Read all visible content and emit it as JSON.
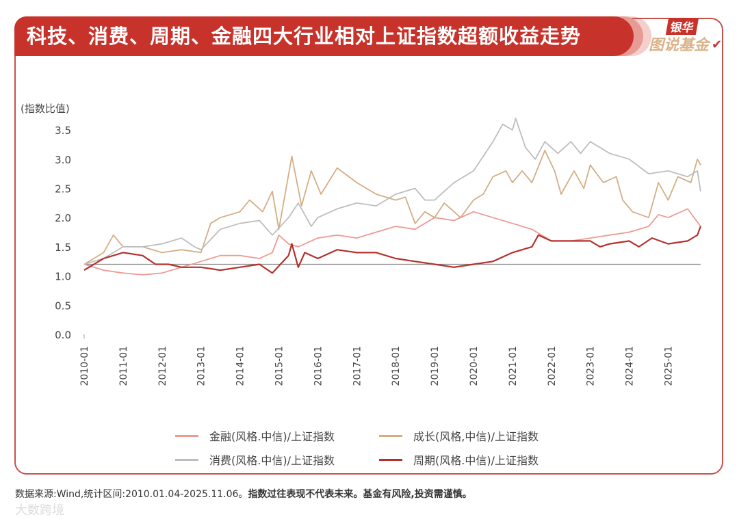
{
  "header": {
    "title": "科技、消费、周期、金融四大行业相对上证指数超额收益走势"
  },
  "logo": {
    "top": "银华",
    "main": "图说基金"
  },
  "footer": {
    "source": "数据来源:Wind,统计区间:2010.01.04-2025.11.06。",
    "disclaimer": "指数过往表现不代表未来。基金有风险,投资需谨慎。"
  },
  "watermark": "大数跨境",
  "chart_data": {
    "type": "line",
    "ylabel": "(指数比值)",
    "ylim": [
      0,
      3.5
    ],
    "yticks": [
      "0.0",
      "0.5",
      "1.0",
      "1.5",
      "2.0",
      "2.5",
      "3.0",
      "3.5"
    ],
    "xticks": [
      "2010-01",
      "2011-01",
      "2012-01",
      "2013-01",
      "2014-01",
      "2015-01",
      "2016-01",
      "2017-01",
      "2018-01",
      "2019-01",
      "2020-01",
      "2021-01",
      "2022-01",
      "2023-01",
      "2024-01",
      "2025-01"
    ],
    "xlim": [
      "2010-01",
      "2025-11"
    ],
    "reference_line": {
      "y": 1.2,
      "color": "#888888"
    },
    "grid": false,
    "legend_placement": "bottom",
    "series": [
      {
        "name": "金融(风格.中信)/上证指数",
        "color": "#ee9a93",
        "points": [
          [
            "2010-01",
            1.2
          ],
          [
            "2010-07",
            1.1
          ],
          [
            "2011-01",
            1.05
          ],
          [
            "2011-07",
            1.02
          ],
          [
            "2012-01",
            1.05
          ],
          [
            "2012-07",
            1.15
          ],
          [
            "2013-01",
            1.25
          ],
          [
            "2013-07",
            1.35
          ],
          [
            "2014-01",
            1.35
          ],
          [
            "2014-07",
            1.3
          ],
          [
            "2014-11",
            1.4
          ],
          [
            "2015-01",
            1.7
          ],
          [
            "2015-04",
            1.55
          ],
          [
            "2015-07",
            1.5
          ],
          [
            "2016-01",
            1.65
          ],
          [
            "2016-07",
            1.7
          ],
          [
            "2017-01",
            1.65
          ],
          [
            "2017-07",
            1.75
          ],
          [
            "2018-01",
            1.85
          ],
          [
            "2018-07",
            1.8
          ],
          [
            "2019-01",
            2.0
          ],
          [
            "2019-07",
            1.95
          ],
          [
            "2020-01",
            2.1
          ],
          [
            "2020-07",
            2.0
          ],
          [
            "2021-01",
            1.9
          ],
          [
            "2021-07",
            1.8
          ],
          [
            "2022-01",
            1.6
          ],
          [
            "2022-07",
            1.6
          ],
          [
            "2023-01",
            1.65
          ],
          [
            "2023-07",
            1.7
          ],
          [
            "2024-01",
            1.75
          ],
          [
            "2024-07",
            1.85
          ],
          [
            "2024-10",
            2.05
          ],
          [
            "2025-01",
            2.0
          ],
          [
            "2025-07",
            2.15
          ],
          [
            "2025-11",
            1.85
          ]
        ]
      },
      {
        "name": "成长(风格,中信)/上证指数",
        "color": "#d4ad84",
        "points": [
          [
            "2010-01",
            1.2
          ],
          [
            "2010-07",
            1.4
          ],
          [
            "2010-10",
            1.7
          ],
          [
            "2011-01",
            1.5
          ],
          [
            "2011-07",
            1.5
          ],
          [
            "2012-01",
            1.4
          ],
          [
            "2012-07",
            1.45
          ],
          [
            "2013-01",
            1.4
          ],
          [
            "2013-04",
            1.9
          ],
          [
            "2013-07",
            2.0
          ],
          [
            "2014-01",
            2.1
          ],
          [
            "2014-04",
            2.3
          ],
          [
            "2014-08",
            2.1
          ],
          [
            "2014-11",
            2.45
          ],
          [
            "2015-01",
            1.8
          ],
          [
            "2015-05",
            3.05
          ],
          [
            "2015-08",
            2.2
          ],
          [
            "2015-11",
            2.8
          ],
          [
            "2016-02",
            2.4
          ],
          [
            "2016-07",
            2.85
          ],
          [
            "2017-01",
            2.6
          ],
          [
            "2017-07",
            2.4
          ],
          [
            "2018-01",
            2.3
          ],
          [
            "2018-04",
            2.35
          ],
          [
            "2018-07",
            1.9
          ],
          [
            "2018-10",
            2.1
          ],
          [
            "2019-01",
            2.0
          ],
          [
            "2019-04",
            2.25
          ],
          [
            "2019-09",
            2.0
          ],
          [
            "2020-01",
            2.3
          ],
          [
            "2020-04",
            2.4
          ],
          [
            "2020-07",
            2.7
          ],
          [
            "2020-11",
            2.8
          ],
          [
            "2021-01",
            2.6
          ],
          [
            "2021-04",
            2.8
          ],
          [
            "2021-07",
            2.6
          ],
          [
            "2021-11",
            3.15
          ],
          [
            "2022-02",
            2.8
          ],
          [
            "2022-04",
            2.4
          ],
          [
            "2022-08",
            2.8
          ],
          [
            "2022-11",
            2.5
          ],
          [
            "2023-01",
            2.9
          ],
          [
            "2023-05",
            2.6
          ],
          [
            "2023-09",
            2.7
          ],
          [
            "2023-11",
            2.3
          ],
          [
            "2024-02",
            2.1
          ],
          [
            "2024-07",
            2.0
          ],
          [
            "2024-10",
            2.6
          ],
          [
            "2025-01",
            2.3
          ],
          [
            "2025-04",
            2.7
          ],
          [
            "2025-08",
            2.6
          ],
          [
            "2025-10",
            3.0
          ],
          [
            "2025-11",
            2.9
          ]
        ]
      },
      {
        "name": "消费(风格.中信)/上证指数",
        "color": "#bdbdbd",
        "points": [
          [
            "2010-01",
            1.2
          ],
          [
            "2010-07",
            1.3
          ],
          [
            "2011-01",
            1.5
          ],
          [
            "2011-07",
            1.5
          ],
          [
            "2012-01",
            1.55
          ],
          [
            "2012-07",
            1.65
          ],
          [
            "2012-11",
            1.5
          ],
          [
            "2013-01",
            1.45
          ],
          [
            "2013-07",
            1.8
          ],
          [
            "2014-01",
            1.9
          ],
          [
            "2014-07",
            1.95
          ],
          [
            "2014-11",
            1.7
          ],
          [
            "2015-04",
            2.0
          ],
          [
            "2015-07",
            2.25
          ],
          [
            "2015-11",
            1.85
          ],
          [
            "2016-01",
            2.0
          ],
          [
            "2016-07",
            2.15
          ],
          [
            "2017-01",
            2.25
          ],
          [
            "2017-07",
            2.2
          ],
          [
            "2018-01",
            2.4
          ],
          [
            "2018-07",
            2.5
          ],
          [
            "2018-10",
            2.3
          ],
          [
            "2019-01",
            2.3
          ],
          [
            "2019-07",
            2.6
          ],
          [
            "2020-01",
            2.8
          ],
          [
            "2020-07",
            3.3
          ],
          [
            "2020-10",
            3.6
          ],
          [
            "2021-01",
            3.5
          ],
          [
            "2021-02",
            3.7
          ],
          [
            "2021-05",
            3.2
          ],
          [
            "2021-08",
            3.0
          ],
          [
            "2021-11",
            3.3
          ],
          [
            "2022-03",
            3.1
          ],
          [
            "2022-07",
            3.3
          ],
          [
            "2022-10",
            3.1
          ],
          [
            "2023-01",
            3.3
          ],
          [
            "2023-07",
            3.1
          ],
          [
            "2024-01",
            3.0
          ],
          [
            "2024-07",
            2.75
          ],
          [
            "2025-01",
            2.8
          ],
          [
            "2025-07",
            2.7
          ],
          [
            "2025-10",
            2.8
          ],
          [
            "2025-11",
            2.45
          ]
        ]
      },
      {
        "name": "周期(风格.中信)/上证指数",
        "color": "#b5302a",
        "points": [
          [
            "2010-01",
            1.1
          ],
          [
            "2010-07",
            1.3
          ],
          [
            "2011-01",
            1.4
          ],
          [
            "2011-07",
            1.35
          ],
          [
            "2011-11",
            1.2
          ],
          [
            "2012-03",
            1.2
          ],
          [
            "2012-07",
            1.15
          ],
          [
            "2013-01",
            1.15
          ],
          [
            "2013-07",
            1.1
          ],
          [
            "2014-01",
            1.15
          ],
          [
            "2014-07",
            1.2
          ],
          [
            "2014-11",
            1.05
          ],
          [
            "2015-04",
            1.35
          ],
          [
            "2015-05",
            1.55
          ],
          [
            "2015-07",
            1.15
          ],
          [
            "2015-09",
            1.4
          ],
          [
            "2016-01",
            1.3
          ],
          [
            "2016-07",
            1.45
          ],
          [
            "2017-01",
            1.4
          ],
          [
            "2017-07",
            1.4
          ],
          [
            "2018-01",
            1.3
          ],
          [
            "2018-07",
            1.25
          ],
          [
            "2019-01",
            1.2
          ],
          [
            "2019-07",
            1.15
          ],
          [
            "2020-01",
            1.2
          ],
          [
            "2020-07",
            1.25
          ],
          [
            "2021-01",
            1.4
          ],
          [
            "2021-07",
            1.5
          ],
          [
            "2021-09",
            1.7
          ],
          [
            "2022-01",
            1.6
          ],
          [
            "2022-07",
            1.6
          ],
          [
            "2023-01",
            1.6
          ],
          [
            "2023-04",
            1.5
          ],
          [
            "2023-07",
            1.55
          ],
          [
            "2024-01",
            1.6
          ],
          [
            "2024-04",
            1.5
          ],
          [
            "2024-08",
            1.65
          ],
          [
            "2025-01",
            1.55
          ],
          [
            "2025-07",
            1.6
          ],
          [
            "2025-10",
            1.7
          ],
          [
            "2025-11",
            1.85
          ]
        ]
      }
    ]
  }
}
